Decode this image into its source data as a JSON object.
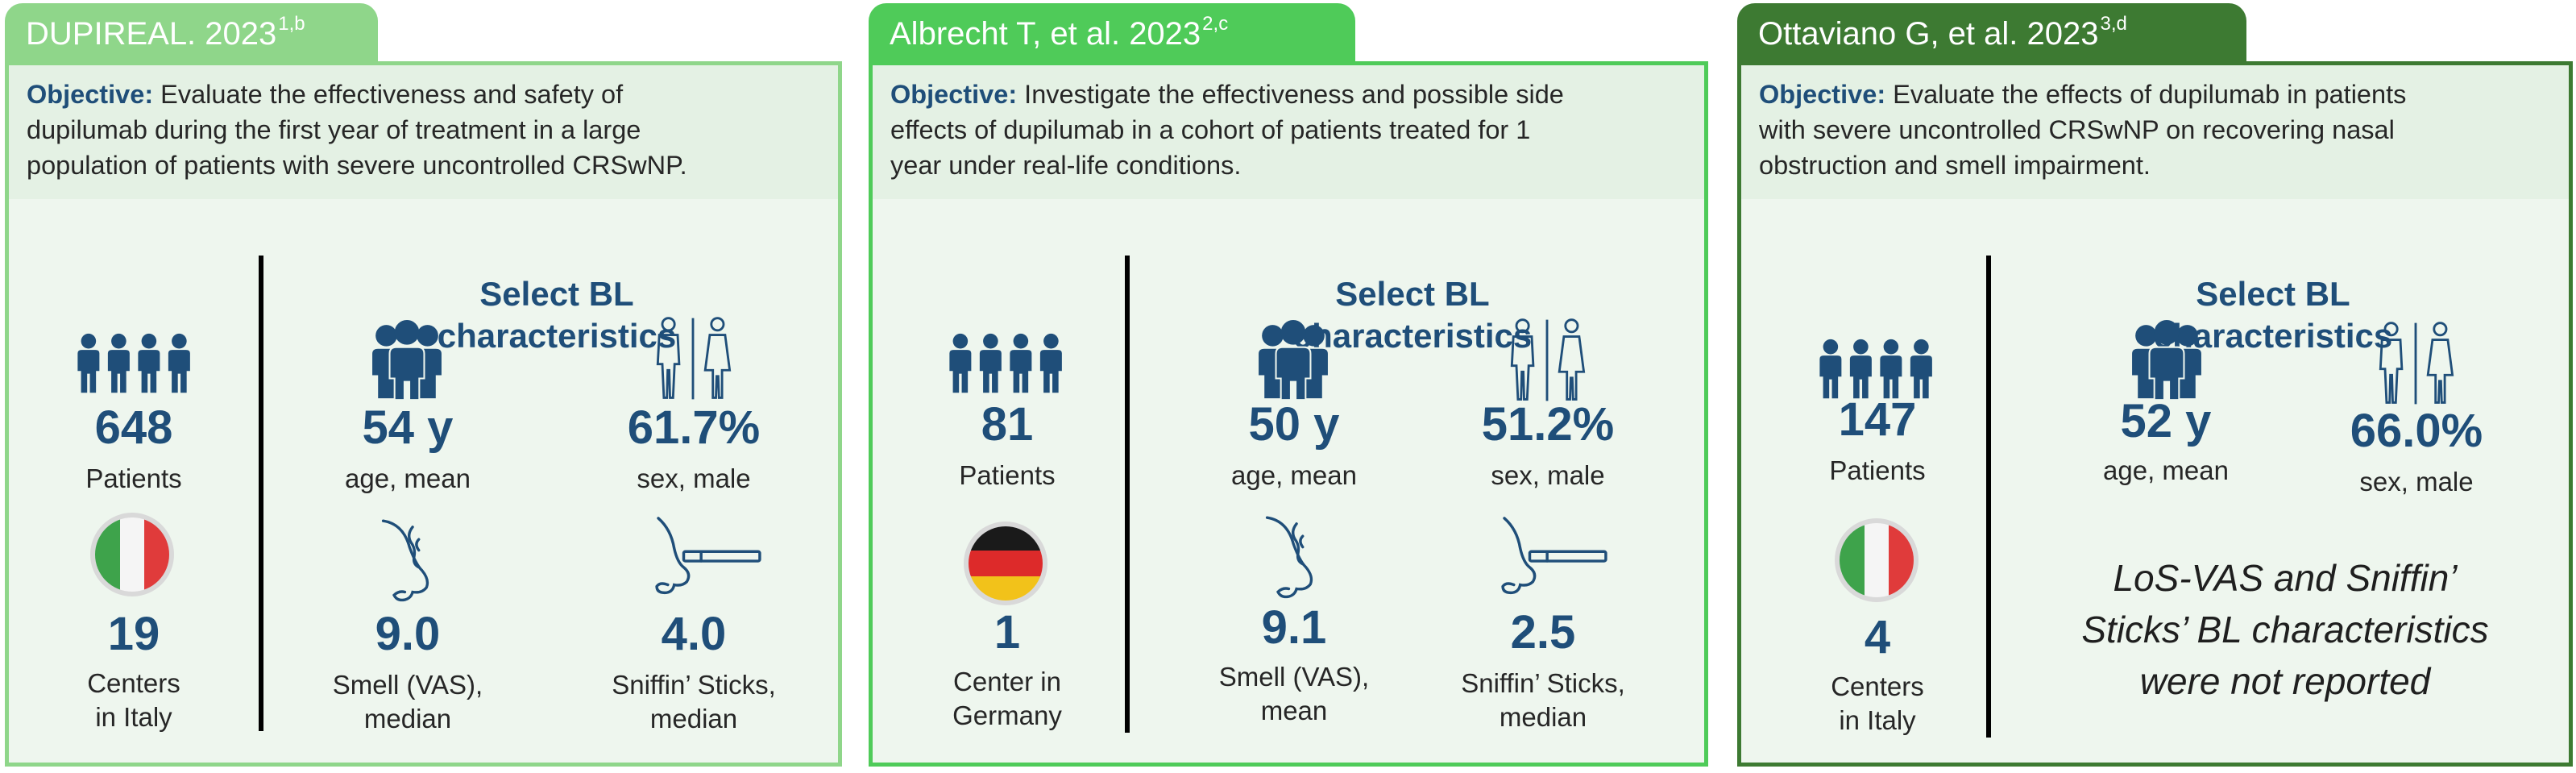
{
  "colors": {
    "navy": "#1f4e79",
    "tab1": "#8fd68a",
    "tab2": "#4fcb59",
    "tab3": "#3d7a32",
    "border1": "#8fd68a",
    "border2": "#4fcb59",
    "border3": "#3d7a32",
    "objective_bg": "#e4f1e4",
    "body_bg": "#eef6ee"
  },
  "objective_prefix": "Objective:",
  "select_bl_heading": [
    "Select BL",
    "characteristics"
  ],
  "panels": [
    {
      "tab_title": "DUPIREAL. 2023",
      "tab_sup": "1,b",
      "objective_text": [
        "Evaluate the effectiveness and safety of",
        "dupilumab during the first year of treatment in a large",
        "population of patients with severe uncontrolled CRSwNP."
      ],
      "patients_value": "648",
      "patients_label": "Patients",
      "flag": "italy",
      "centers_value": "19",
      "centers_label": [
        "Centers",
        "in Italy"
      ],
      "age_value": "54 y",
      "age_label": "age, mean",
      "sex_value": "61.7%",
      "sex_label": "sex, male",
      "smell_value": "9.0",
      "smell_label": [
        "Smell (VAS),",
        "median"
      ],
      "sniffin_value": "4.0",
      "sniffin_label": [
        "Sniffin’ Sticks,",
        "median"
      ]
    },
    {
      "tab_title": "Albrecht T, et al. 2023",
      "tab_sup": "2,c",
      "objective_text": [
        "Investigate the effectiveness and possible side",
        "effects of dupilumab in a cohort of patients treated for 1",
        "year under real-life conditions."
      ],
      "patients_value": "81",
      "patients_label": "Patients",
      "flag": "germany",
      "centers_value": "1",
      "centers_label": [
        "Center in",
        "Germany"
      ],
      "age_value": "50 y",
      "age_label": "age, mean",
      "sex_value": "51.2%",
      "sex_label": "sex, male",
      "smell_value": "9.1",
      "smell_label": [
        "Smell (VAS),",
        "mean"
      ],
      "sniffin_value": "2.5",
      "sniffin_label": [
        "Sniffin’ Sticks,",
        "median"
      ]
    },
    {
      "tab_title": "Ottaviano G, et al. 2023",
      "tab_sup": "3,d",
      "objective_text": [
        "Evaluate the effects of dupilumab in patients",
        "with severe uncontrolled CRSwNP on recovering nasal",
        "obstruction and smell impairment."
      ],
      "patients_value": "147",
      "patients_label": "Patients",
      "flag": "italy",
      "centers_value": "4",
      "centers_label": [
        "Centers",
        "in Italy"
      ],
      "age_value": "52 y",
      "age_label": "age, mean",
      "sex_value": "66.0%",
      "sex_label": "sex, male",
      "note": [
        "LoS-VAS and Sniffin’",
        "Sticks’ BL characteristics",
        "were not reported"
      ]
    }
  ]
}
